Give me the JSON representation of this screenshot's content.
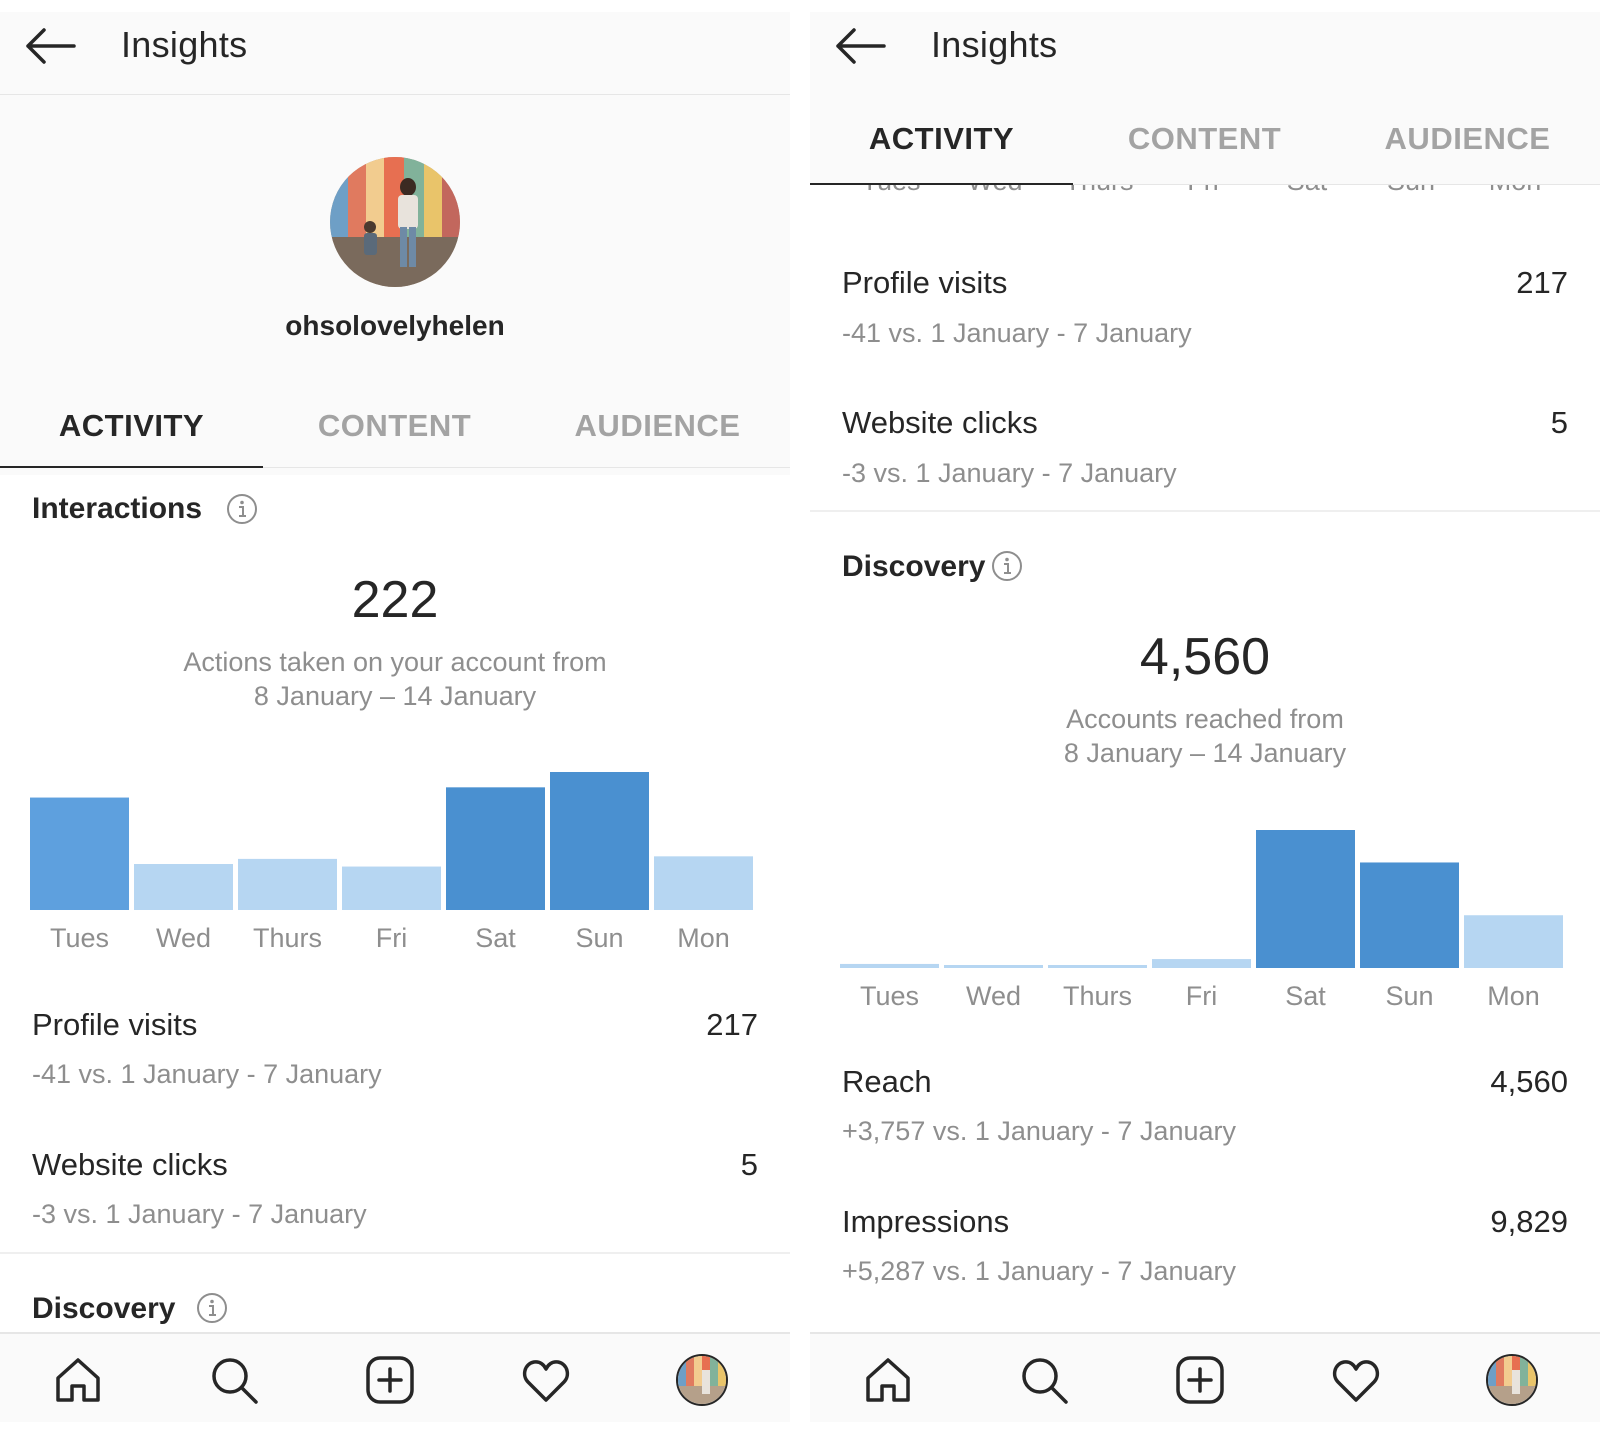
{
  "left": {
    "header": {
      "title": "Insights"
    },
    "profile": {
      "username": "ohsolovelyhelen"
    },
    "tabs": [
      "ACTIVITY",
      "CONTENT",
      "AUDIENCE"
    ],
    "active_tab": "ACTIVITY",
    "interactions": {
      "title": "Interactions",
      "total": "222",
      "caption_line1": "Actions taken on your account from",
      "caption_line2": "8 January – 14 January"
    },
    "rows": [
      {
        "label": "Profile visits",
        "value": "217",
        "compare": "-41 vs. 1 January - 7 January"
      },
      {
        "label": "Website clicks",
        "value": "5",
        "compare": "-3 vs. 1 January - 7 January"
      }
    ],
    "discovery_peek": {
      "title": "Discovery"
    }
  },
  "right": {
    "header": {
      "title": "Insights"
    },
    "tabs": [
      "ACTIVITY",
      "CONTENT",
      "AUDIENCE"
    ],
    "active_tab": "ACTIVITY",
    "cut_day_labels": [
      "Tues",
      "Wed",
      "Thurs",
      "Fri",
      "Sat",
      "Sun",
      "Mon"
    ],
    "rows_top": [
      {
        "label": "Profile visits",
        "value": "217",
        "compare": "-41 vs. 1 January - 7 January"
      },
      {
        "label": "Website clicks",
        "value": "5",
        "compare": "-3 vs. 1 January - 7 January"
      }
    ],
    "discovery": {
      "title": "Discovery",
      "total": "4,560",
      "caption_line1": "Accounts reached from",
      "caption_line2": "8 January – 14 January"
    },
    "rows_bottom": [
      {
        "label": "Reach",
        "value": "4,560",
        "compare": "+3,757 vs. 1 January - 7 January"
      },
      {
        "label": "Impressions",
        "value": "9,829",
        "compare": "+5,287 vs. 1 January - 7 January"
      }
    ]
  },
  "colors": {
    "bar_dark": "#4a90d0",
    "bar_mid": "#5ea0de",
    "bar_light": "#b6d6f2",
    "text_primary": "#262626",
    "text_secondary": "#8e8e8e"
  },
  "icons": {
    "nav": [
      "home-icon",
      "search-icon",
      "add-post-icon",
      "heart-icon",
      "profile-avatar"
    ],
    "header": "back-arrow-icon",
    "info": "info-icon"
  },
  "chart_data": [
    {
      "type": "bar",
      "categories": [
        "Tues",
        "Wed",
        "Thurs",
        "Fri",
        "Sat",
        "Sun",
        "Mon"
      ],
      "values": [
        44,
        18,
        20,
        17,
        48,
        54,
        21
      ],
      "title": "",
      "xlabel": "",
      "ylabel": "",
      "ylim": [
        0,
        54
      ],
      "grid": false,
      "highlight": [
        false,
        false,
        false,
        false,
        true,
        true,
        false
      ]
    },
    {
      "type": "bar",
      "categories": [
        "Tues",
        "Wed",
        "Thurs",
        "Fri",
        "Sat",
        "Sun",
        "Mon"
      ],
      "values": [
        50,
        20,
        20,
        110,
        1700,
        1300,
        650
      ],
      "title": "",
      "xlabel": "",
      "ylabel": "",
      "ylim": [
        0,
        1700
      ],
      "grid": false,
      "highlight": [
        false,
        false,
        false,
        false,
        true,
        true,
        false
      ]
    }
  ]
}
